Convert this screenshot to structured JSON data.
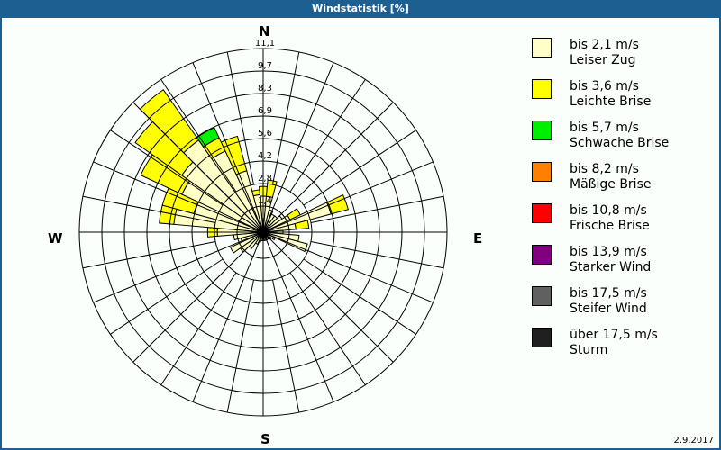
{
  "title": "Windstatistik [%]",
  "date": "2.9.2017",
  "directions": {
    "n": "N",
    "e": "E",
    "s": "S",
    "w": "W"
  },
  "legend": [
    {
      "range": "bis 2,1 m/s",
      "name": "Leiser Zug",
      "color": "#ffffc8"
    },
    {
      "range": "bis 3,6 m/s",
      "name": "Leichte Brise",
      "color": "#ffff00"
    },
    {
      "range": "bis 5,7 m/s",
      "name": "Schwache Brise",
      "color": "#00ee00"
    },
    {
      "range": "bis 8,2 m/s",
      "name": "Mäßige Brise",
      "color": "#ff8000"
    },
    {
      "range": "bis 10,8 m/s",
      "name": "Frische Brise",
      "color": "#ff0000"
    },
    {
      "range": "bis 13,9 m/s",
      "name": "Starker Wind",
      "color": "#800080"
    },
    {
      "range": "bis 17,5 m/s",
      "name": "Steifer Wind",
      "color": "#606060"
    },
    {
      "range": "über 17,5 m/s",
      "name": "Sturm",
      "color": "#202020"
    }
  ],
  "chart_data": {
    "type": "wind-rose",
    "title": "Windstatistik [%]",
    "radial_ticks": [
      "1,4",
      "2,8",
      "4,2",
      "5,6",
      "6,9",
      "8,3",
      "9,7",
      "11,1"
    ],
    "radial_max": 11.1,
    "sector_width_deg": 10,
    "series_names": [
      "bis 2,1 m/s",
      "bis 3,6 m/s",
      "bis 5,7 m/s"
    ],
    "sectors": [
      {
        "dir": 0,
        "values": [
          2.0,
          0.6,
          0
        ]
      },
      {
        "dir": 10,
        "values": [
          2.0,
          1.0,
          0
        ]
      },
      {
        "dir": 20,
        "values": [
          1.2,
          0.0,
          0
        ]
      },
      {
        "dir": 30,
        "values": [
          1.0,
          0.0,
          0
        ]
      },
      {
        "dir": 40,
        "values": [
          1.0,
          0.0,
          0
        ]
      },
      {
        "dir": 50,
        "values": [
          1.2,
          0.0,
          0
        ]
      },
      {
        "dir": 60,
        "values": [
          1.6,
          0.7,
          0
        ]
      },
      {
        "dir": 70,
        "values": [
          4.1,
          1.1,
          0
        ]
      },
      {
        "dir": 80,
        "values": [
          1.8,
          0.8,
          0
        ]
      },
      {
        "dir": 90,
        "values": [
          1.0,
          0.0,
          0
        ]
      },
      {
        "dir": 100,
        "values": [
          2.0,
          0.0,
          0
        ]
      },
      {
        "dir": 110,
        "values": [
          2.6,
          0.0,
          0
        ]
      },
      {
        "dir": 120,
        "values": [
          0.6,
          0.0,
          0
        ]
      },
      {
        "dir": 130,
        "values": [
          0.4,
          0.0,
          0
        ]
      },
      {
        "dir": 140,
        "values": [
          0.3,
          0.0,
          0
        ]
      },
      {
        "dir": 150,
        "values": [
          0.3,
          0.0,
          0
        ]
      },
      {
        "dir": 160,
        "values": [
          0.3,
          0.0,
          0
        ]
      },
      {
        "dir": 170,
        "values": [
          0.3,
          0.0,
          0
        ]
      },
      {
        "dir": 180,
        "values": [
          0.3,
          0.0,
          0
        ]
      },
      {
        "dir": 190,
        "values": [
          0.3,
          0.0,
          0
        ]
      },
      {
        "dir": 200,
        "values": [
          0.4,
          0.0,
          0
        ]
      },
      {
        "dir": 210,
        "values": [
          0.6,
          0.0,
          0
        ]
      },
      {
        "dir": 220,
        "values": [
          1.0,
          0.0,
          0
        ]
      },
      {
        "dir": 230,
        "values": [
          1.5,
          0.0,
          0
        ]
      },
      {
        "dir": 240,
        "values": [
          2.0,
          0.0,
          0
        ]
      },
      {
        "dir": 250,
        "values": [
          1.2,
          0.0,
          0
        ]
      },
      {
        "dir": 260,
        "values": [
          1.6,
          0.0,
          0
        ]
      },
      {
        "dir": 270,
        "values": [
          2.6,
          0.6,
          0
        ]
      },
      {
        "dir": 280,
        "values": [
          5.3,
          0.9,
          0
        ]
      },
      {
        "dir": 290,
        "values": [
          4.2,
          2.0,
          0
        ]
      },
      {
        "dir": 300,
        "values": [
          5.3,
          2.8,
          0
        ]
      },
      {
        "dir": 310,
        "values": [
          5.9,
          3.5,
          0
        ]
      },
      {
        "dir": 320,
        "values": [
          6.7,
          3.8,
          0
        ]
      },
      {
        "dir": 330,
        "values": [
          5.3,
          0.9,
          0.7
        ]
      },
      {
        "dir": 340,
        "values": [
          3.7,
          2.2,
          0
        ]
      },
      {
        "dir": 350,
        "values": [
          2.1,
          0.3,
          0
        ]
      }
    ]
  }
}
